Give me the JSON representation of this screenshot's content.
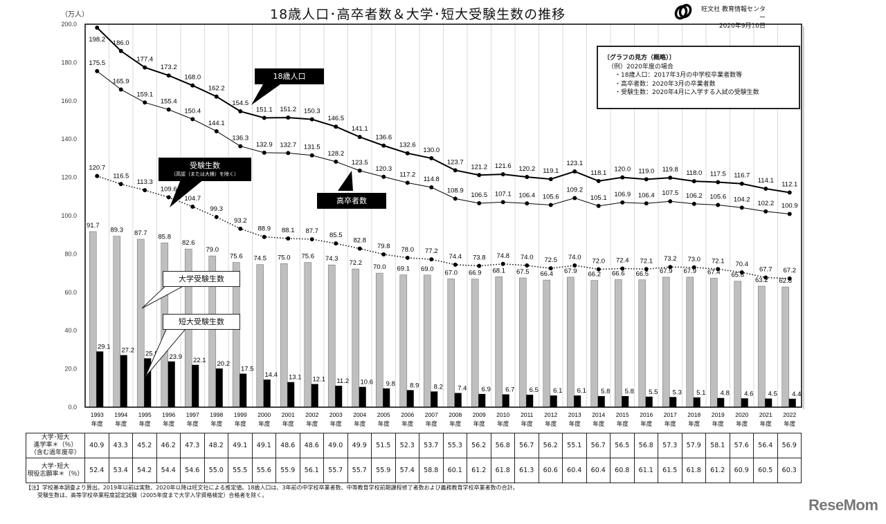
{
  "header": {
    "title": "18歳人口･高卒者数＆大学･短大受験生数の推移",
    "unit": "（万人）",
    "publisher": "旺文社 教育情報センター",
    "date": "2020年9月10日"
  },
  "guide": {
    "title": "〔グラフの見方（概略）〕",
    "example": "（例）2020年度の場合",
    "items": [
      "・18歳人口：2017年3月の中学校卒業者数等",
      "・高卒者数：2020年3月の卒業者数",
      "・受験生数：2020年4月に入学する入試の受験生数"
    ]
  },
  "callouts": {
    "pop18": "18歳人口",
    "grads": "高卒者数",
    "applicants": "受験生数",
    "applicants_sub": "（高認（または大検）を除く）",
    "univ": "大学受験生数",
    "junior": "短大受験生数"
  },
  "table": {
    "rows": [
      {
        "label_lines": [
          "大学･短大",
          "進学率＊（％）",
          "（含む過年度卒）"
        ],
        "values": [
          "40.9",
          "43.3",
          "45.2",
          "46.2",
          "47.3",
          "48.2",
          "49.1",
          "49.1",
          "48.6",
          "48.6",
          "49.0",
          "49.9",
          "51.5",
          "52.3",
          "53.7",
          "55.3",
          "56.2",
          "56.8",
          "56.7",
          "56.2",
          "55.1",
          "56.7",
          "56.5",
          "56.8",
          "57.3",
          "57.9",
          "58.1",
          "57.6",
          "56.4",
          "56.9"
        ]
      },
      {
        "label_lines": [
          "大学･短大",
          "現役志願率＊（％）"
        ],
        "values": [
          "52.4",
          "53.4",
          "54.2",
          "54.4",
          "54.6",
          "55.0",
          "55.5",
          "55.6",
          "55.9",
          "56.1",
          "55.7",
          "55.7",
          "55.9",
          "57.4",
          "58.8",
          "60.1",
          "61.2",
          "61.8",
          "61.3",
          "60.6",
          "60.4",
          "60.4",
          "60.8",
          "61.1",
          "61.5",
          "61.8",
          "61.2",
          "60.9",
          "60.5",
          "60.3"
        ]
      }
    ]
  },
  "notes": {
    "line1": "【注】学校基本調査より算出。2019年以前は実数、2020年以降は旺文社による推定値。18歳人口は、3年前の中学校卒業者数、中等教育学校前期課程修了者数および義務教育学校卒業者数の合計。",
    "line2": "受験生数は、高等学校卒業程度認定試験（2005年度まで大学入学資格検定）合格者を除く。"
  },
  "watermark": "ReseMom",
  "colors": {
    "univ_bar": "#bfbfbf",
    "junior_bar": "#000000",
    "line": "#000000",
    "grid": "#d9d9d9"
  },
  "chart_data": {
    "type": "bar",
    "title": "18歳人口･高卒者数＆大学･短大受験生数の推移",
    "xlabel": "",
    "ylabel": "（万人）",
    "ylim": [
      0,
      200
    ],
    "yticks": [
      "0.0",
      "20.0",
      "40.0",
      "60.0",
      "80.0",
      "100.0",
      "120.0",
      "140.0",
      "160.0",
      "180.0",
      "200.0"
    ],
    "grid": true,
    "year_suffix": "年度",
    "categories": [
      "1993",
      "1994",
      "1995",
      "1996",
      "1997",
      "1998",
      "1999",
      "2000",
      "2001",
      "2002",
      "2003",
      "2004",
      "2005",
      "2006",
      "2007",
      "2008",
      "2009",
      "2010",
      "2011",
      "2012",
      "2013",
      "2014",
      "2015",
      "2016",
      "2017",
      "2018",
      "2019",
      "2020",
      "2021",
      "2022"
    ],
    "series": [
      {
        "name": "18歳人口",
        "type": "line",
        "style": "thick",
        "values": [
          198.2,
          186.0,
          177.4,
          173.2,
          168.0,
          162.2,
          154.5,
          151.1,
          151.2,
          150.3,
          146.5,
          141.1,
          136.6,
          132.6,
          130.0,
          123.7,
          121.2,
          121.6,
          120.2,
          119.1,
          123.1,
          118.1,
          120.0,
          119.0,
          119.8,
          118.0,
          117.5,
          116.7,
          114.1,
          112.1
        ]
      },
      {
        "name": "高卒者数",
        "type": "line",
        "style": "thin",
        "values": [
          175.5,
          165.9,
          159.1,
          155.4,
          150.4,
          144.1,
          136.3,
          132.9,
          132.7,
          131.5,
          128.2,
          123.5,
          120.3,
          117.2,
          114.8,
          108.9,
          106.5,
          107.1,
          106.4,
          105.6,
          109.2,
          105.1,
          106.9,
          106.4,
          107.5,
          106.2,
          105.6,
          104.2,
          102.2,
          100.9
        ]
      },
      {
        "name": "受験生数（高認（または大検）を除く）",
        "type": "line",
        "style": "dotted",
        "values": [
          120.7,
          116.5,
          113.3,
          109.6,
          104.7,
          99.3,
          93.2,
          88.9,
          88.1,
          87.7,
          85.5,
          82.8,
          79.8,
          78.0,
          77.2,
          74.4,
          73.8,
          74.8,
          74.0,
          72.5,
          74.0,
          72.0,
          72.4,
          72.1,
          73.2,
          73.0,
          72.1,
          70.4,
          67.7,
          67.2
        ]
      },
      {
        "name": "大学受験生数",
        "type": "bar",
        "color": "#bfbfbf",
        "values": [
          91.7,
          89.3,
          87.7,
          85.8,
          82.6,
          79.0,
          75.6,
          74.5,
          75.0,
          75.6,
          74.3,
          72.2,
          70.0,
          69.1,
          69.0,
          67.0,
          66.9,
          68.1,
          67.5,
          66.4,
          67.9,
          66.2,
          66.6,
          66.5,
          67.9,
          67.9,
          67.4,
          65.8,
          63.2,
          62.8
        ]
      },
      {
        "name": "短大受験生数",
        "type": "bar",
        "color": "#000000",
        "values": [
          29.1,
          27.2,
          25.5,
          23.9,
          22.1,
          20.2,
          17.5,
          14.4,
          13.1,
          12.1,
          11.2,
          10.6,
          9.8,
          8.9,
          8.2,
          7.4,
          6.9,
          6.7,
          6.5,
          6.1,
          6.1,
          5.8,
          5.8,
          5.5,
          5.3,
          5.1,
          4.8,
          4.6,
          4.5,
          4.4
        ]
      }
    ],
    "table_rows": [
      {
        "name": "大学･短大 進学率＊（％）（含む過年度卒）",
        "values": [
          40.9,
          43.3,
          45.2,
          46.2,
          47.3,
          48.2,
          49.1,
          49.1,
          48.6,
          48.6,
          49.0,
          49.9,
          51.5,
          52.3,
          53.7,
          55.3,
          56.2,
          56.8,
          56.7,
          56.2,
          55.1,
          56.7,
          56.5,
          56.8,
          57.3,
          57.9,
          58.1,
          57.6,
          56.4,
          56.9
        ]
      },
      {
        "name": "大学･短大 現役志願率＊（％）",
        "values": [
          52.4,
          53.4,
          54.2,
          54.4,
          54.6,
          55.0,
          55.5,
          55.6,
          55.9,
          56.1,
          55.7,
          55.7,
          55.9,
          57.4,
          58.8,
          60.1,
          61.2,
          61.8,
          61.3,
          60.6,
          60.4,
          60.4,
          60.8,
          61.1,
          61.5,
          61.8,
          61.2,
          60.9,
          60.5,
          60.3
        ]
      }
    ]
  }
}
